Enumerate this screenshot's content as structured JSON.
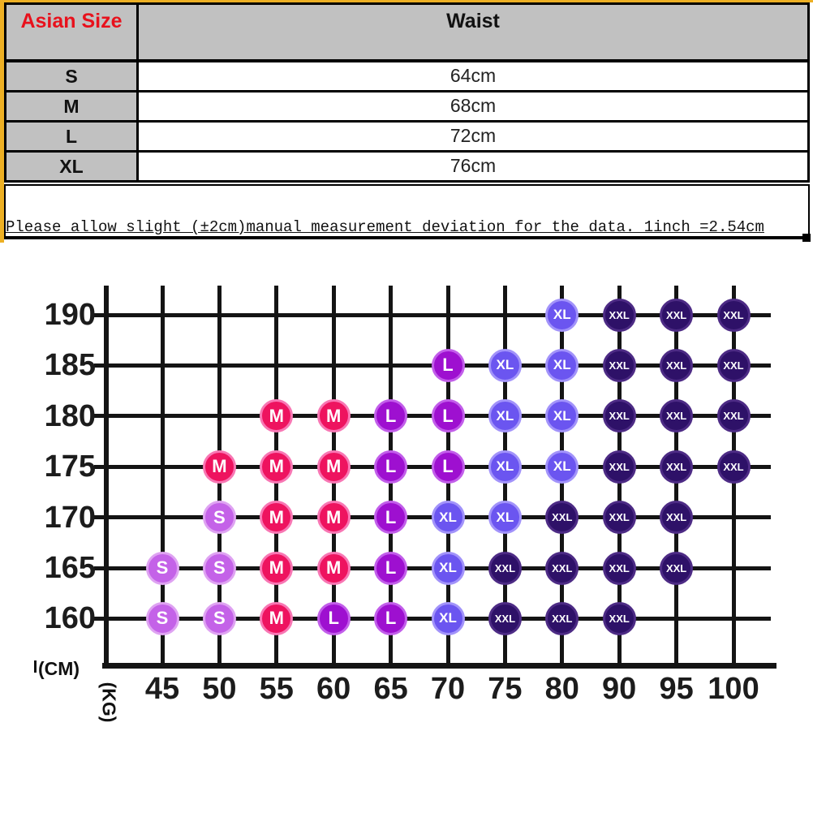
{
  "size_table": {
    "header": [
      "Asian Size",
      "Waist"
    ],
    "rows": [
      {
        "size": "S",
        "waist": "64cm"
      },
      {
        "size": "M",
        "waist": "68cm"
      },
      {
        "size": "L",
        "waist": "72cm"
      },
      {
        "size": "XL",
        "waist": "76cm"
      }
    ],
    "header_color": "#e8111c",
    "cell_gray": "#c1c1c1",
    "frame_gold": "#edb024"
  },
  "note": {
    "text": "Please allow slight (±2cm)manual measurement deviation for the data. 1inch =2.54cm"
  },
  "chart_data": {
    "type": "scatter",
    "xlabel": "(KG)",
    "ylabel": "(CM)",
    "x_ticks": [
      45,
      50,
      55,
      60,
      65,
      70,
      75,
      80,
      90,
      95,
      100
    ],
    "y_ticks": [
      190,
      185,
      180,
      175,
      170,
      165,
      160
    ],
    "grid": true,
    "series": [
      {
        "name": "S",
        "color": "#c462e8",
        "ring": "#dfa3f2",
        "points": [
          [
            45,
            165
          ],
          [
            45,
            160
          ],
          [
            50,
            170
          ],
          [
            50,
            165
          ],
          [
            50,
            160
          ]
        ]
      },
      {
        "name": "M",
        "color": "#ee135f",
        "ring": "#f877b4",
        "points": [
          [
            50,
            175
          ],
          [
            55,
            180
          ],
          [
            55,
            175
          ],
          [
            55,
            170
          ],
          [
            55,
            165
          ],
          [
            55,
            160
          ],
          [
            60,
            180
          ],
          [
            60,
            175
          ],
          [
            60,
            170
          ],
          [
            60,
            165
          ]
        ]
      },
      {
        "name": "L",
        "color": "#9e10d0",
        "ring": "#c25eea",
        "points": [
          [
            60,
            160
          ],
          [
            65,
            180
          ],
          [
            65,
            175
          ],
          [
            65,
            170
          ],
          [
            65,
            165
          ],
          [
            65,
            160
          ],
          [
            70,
            185
          ],
          [
            70,
            180
          ],
          [
            70,
            175
          ]
        ]
      },
      {
        "name": "XL",
        "color": "#6b55f0",
        "ring": "#a293fa",
        "points": [
          [
            70,
            170
          ],
          [
            70,
            165
          ],
          [
            70,
            160
          ],
          [
            75,
            185
          ],
          [
            75,
            180
          ],
          [
            75,
            175
          ],
          [
            75,
            170
          ],
          [
            80,
            190
          ],
          [
            80,
            185
          ],
          [
            80,
            180
          ],
          [
            80,
            175
          ]
        ]
      },
      {
        "name": "XXL",
        "color": "#2e1168",
        "ring": "#4d2b85",
        "points": [
          [
            75,
            165
          ],
          [
            75,
            160
          ],
          [
            80,
            170
          ],
          [
            80,
            165
          ],
          [
            80,
            160
          ],
          [
            90,
            190
          ],
          [
            90,
            185
          ],
          [
            90,
            180
          ],
          [
            90,
            175
          ],
          [
            90,
            170
          ],
          [
            90,
            165
          ],
          [
            90,
            160
          ],
          [
            95,
            190
          ],
          [
            95,
            185
          ],
          [
            95,
            180
          ],
          [
            95,
            175
          ],
          [
            95,
            170
          ],
          [
            95,
            165
          ],
          [
            100,
            190
          ],
          [
            100,
            185
          ],
          [
            100,
            180
          ],
          [
            100,
            175
          ]
        ]
      }
    ]
  }
}
